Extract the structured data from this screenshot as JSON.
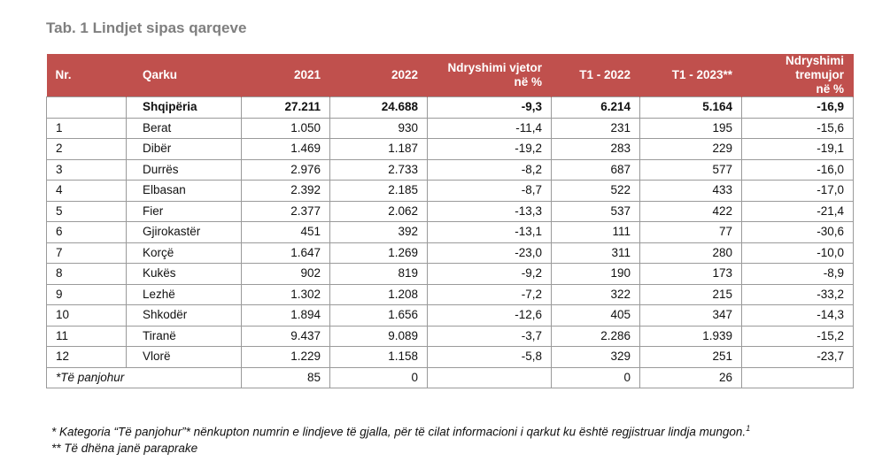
{
  "title": "Tab. 1 Lindjet sipas qarqeve",
  "headers": {
    "nr": "Nr.",
    "qarku": "Qarku",
    "y2021": "2021",
    "y2022": "2022",
    "change_line1": "Ndryshimi vjetor",
    "change_line2": "në %",
    "t1_2022": "T1 - 2022",
    "t1_2023": "T1 - 2023**",
    "qchange_line1": "Ndryshimi tremujor",
    "qchange_line2": "në %"
  },
  "total": {
    "nr": "",
    "qarku": "Shqipëria",
    "y2021": "27.211",
    "y2022": "24.688",
    "change": "-9,3",
    "t1_2022": "6.214",
    "t1_2023": "5.164",
    "qchange": "-16,9"
  },
  "rows": [
    {
      "nr": "1",
      "qarku": "Berat",
      "y2021": "1.050",
      "y2022": "930",
      "change": "-11,4",
      "t1_2022": "231",
      "t1_2023": "195",
      "qchange": "-15,6"
    },
    {
      "nr": "2",
      "qarku": "Dibër",
      "y2021": "1.469",
      "y2022": "1.187",
      "change": "-19,2",
      "t1_2022": "283",
      "t1_2023": "229",
      "qchange": "-19,1"
    },
    {
      "nr": "3",
      "qarku": "Durrës",
      "y2021": "2.976",
      "y2022": "2.733",
      "change": "-8,2",
      "t1_2022": "687",
      "t1_2023": "577",
      "qchange": "-16,0"
    },
    {
      "nr": "4",
      "qarku": "Elbasan",
      "y2021": "2.392",
      "y2022": "2.185",
      "change": "-8,7",
      "t1_2022": "522",
      "t1_2023": "433",
      "qchange": "-17,0"
    },
    {
      "nr": "5",
      "qarku": "Fier",
      "y2021": "2.377",
      "y2022": "2.062",
      "change": "-13,3",
      "t1_2022": "537",
      "t1_2023": "422",
      "qchange": "-21,4"
    },
    {
      "nr": "6",
      "qarku": "Gjirokastër",
      "y2021": "451",
      "y2022": "392",
      "change": "-13,1",
      "t1_2022": "111",
      "t1_2023": "77",
      "qchange": "-30,6"
    },
    {
      "nr": "7",
      "qarku": "Korçë",
      "y2021": "1.647",
      "y2022": "1.269",
      "change": "-23,0",
      "t1_2022": "311",
      "t1_2023": "280",
      "qchange": "-10,0"
    },
    {
      "nr": "8",
      "qarku": "Kukës",
      "y2021": "902",
      "y2022": "819",
      "change": "-9,2",
      "t1_2022": "190",
      "t1_2023": "173",
      "qchange": "-8,9"
    },
    {
      "nr": "9",
      "qarku": "Lezhë",
      "y2021": "1.302",
      "y2022": "1.208",
      "change": "-7,2",
      "t1_2022": "322",
      "t1_2023": "215",
      "qchange": "-33,2"
    },
    {
      "nr": "10",
      "qarku": "Shkodër",
      "y2021": "1.894",
      "y2022": "1.656",
      "change": "-12,6",
      "t1_2022": "405",
      "t1_2023": "347",
      "qchange": "-14,3"
    },
    {
      "nr": "11",
      "qarku": "Tiranë",
      "y2021": "9.437",
      "y2022": "9.089",
      "change": "-3,7",
      "t1_2022": "2.286",
      "t1_2023": "1.939",
      "qchange": "-15,2"
    },
    {
      "nr": "12",
      "qarku": "Vlorë",
      "y2021": "1.229",
      "y2022": "1.158",
      "change": "-5,8",
      "t1_2022": "329",
      "t1_2023": "251",
      "qchange": "-23,7"
    }
  ],
  "unknown": {
    "label": "*Të panjohur",
    "y2021": "85",
    "y2022": "0",
    "t1_2022": "0",
    "t1_2023": "26"
  },
  "footnotes": {
    "fn1": "* Kategoria “Të panjohur”* nënkupton numrin e lindjeve të gjalla, për të cilat informacioni i qarkut  ku është regjistruar lindja mungon.",
    "fn1_sup": "1",
    "fn2": "** Të dhëna janë paraprake"
  },
  "colors": {
    "header_bg": "#c0504d",
    "header_text": "#ffffff",
    "title_text": "#7f7f7f",
    "border": "#9a9a9a"
  }
}
